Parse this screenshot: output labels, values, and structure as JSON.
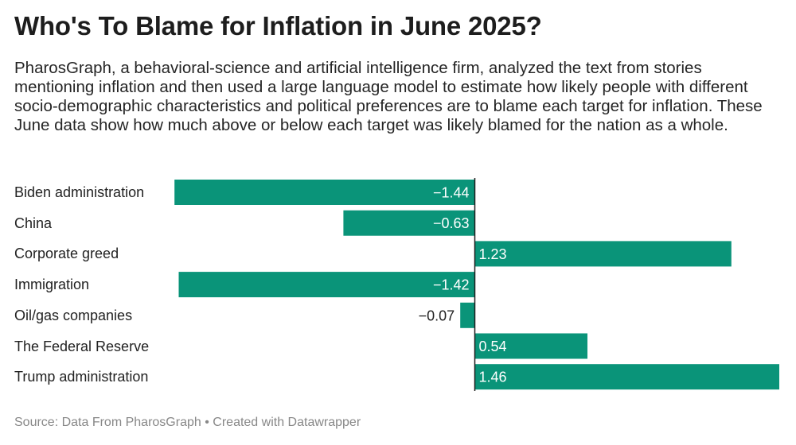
{
  "title": "Who's To Blame for Inflation in June 2025?",
  "description": "PharosGraph, a behavioral-science and artificial intelligence firm, analyzed the text from stories mentioning inflation and then used a large language model to estimate how likely people with different socio-demographic characteristics and political preferences are to blame each target for inflation. These June data show how much above or below each target was likely blamed for the nation as a whole.",
  "footer": {
    "source": "Source: Data From PharosGraph",
    "separator": "•",
    "credit": "Created with Datawrapper"
  },
  "colors": {
    "bar": "#0a9479",
    "axis": "#1d1d1d",
    "label_inside": "#ffffff",
    "label_outside": "#222222"
  },
  "chart_data": {
    "type": "bar",
    "orientation": "horizontal",
    "categories": [
      "Biden administration",
      "China",
      "Corporate greed",
      "Immigration",
      "Oil/gas companies",
      "The Federal Reserve",
      "Trump administration"
    ],
    "values": [
      -1.44,
      -0.63,
      1.23,
      -1.42,
      -0.07,
      0.54,
      1.46
    ],
    "value_labels": [
      "−1.44",
      "−0.63",
      "1.23",
      "−1.42",
      "−0.07",
      "0.54",
      "1.46"
    ],
    "xlim": [
      -1.44,
      1.46
    ],
    "zero_line": true
  }
}
